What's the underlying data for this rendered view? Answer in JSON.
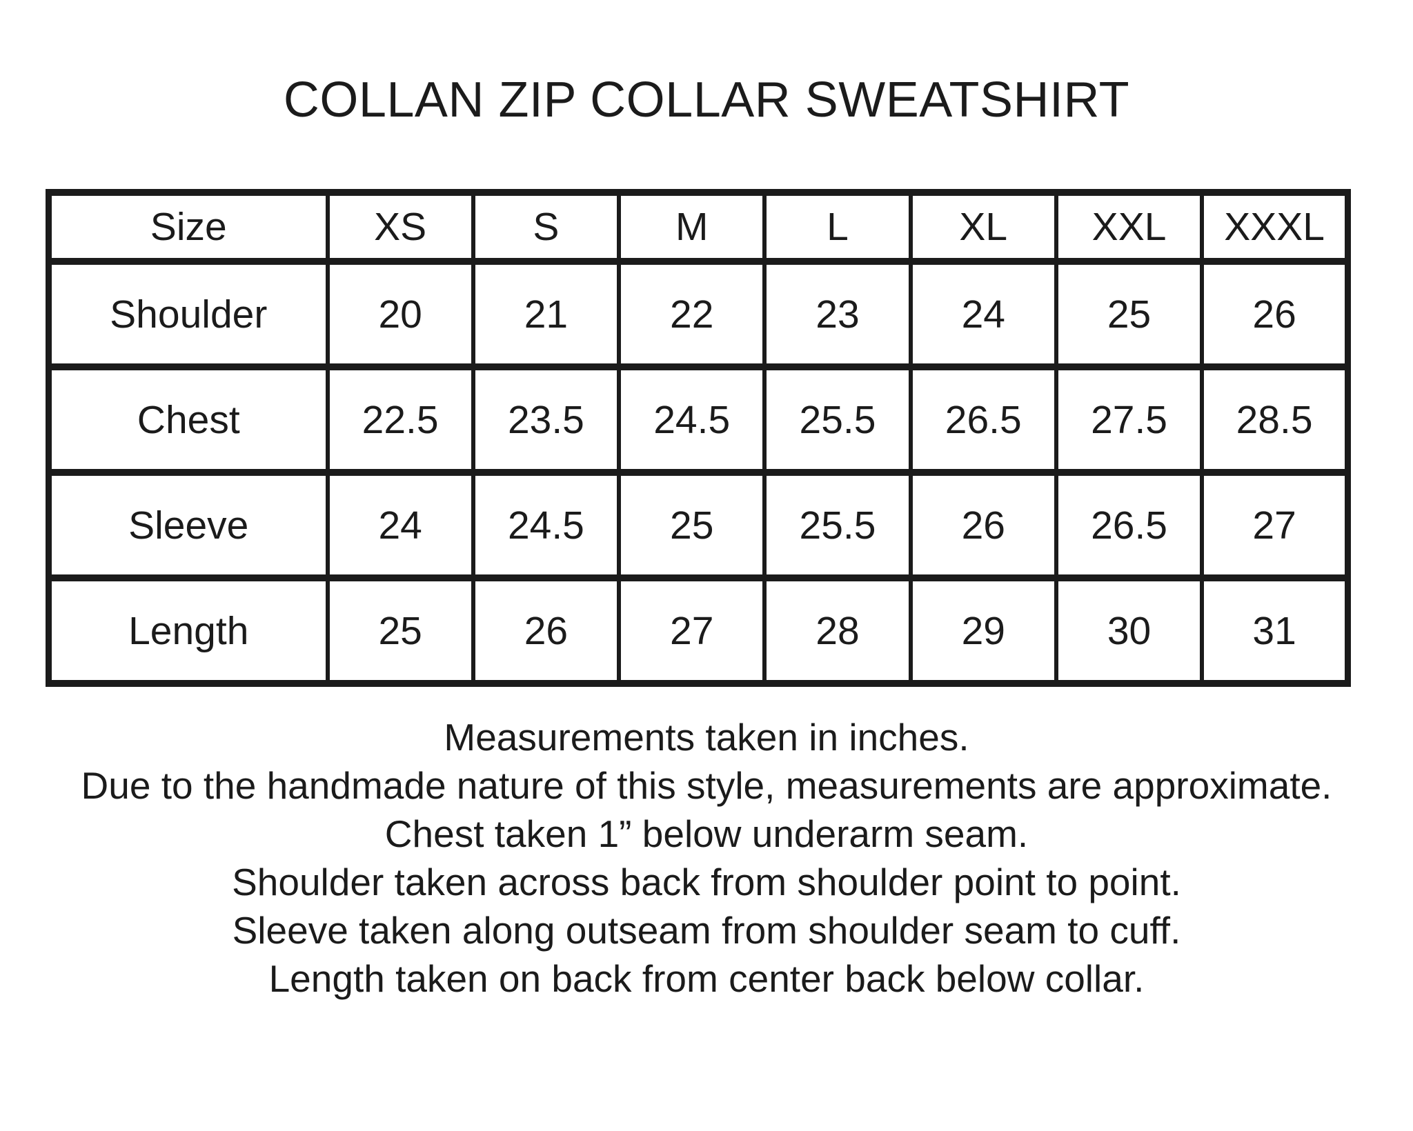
{
  "colors": {
    "background": "#ffffff",
    "text": "#1b1b1b",
    "border": "#1b1b1b"
  },
  "title": "COLLAN ZIP COLLAR SWEATSHIRT",
  "size_table": {
    "header": [
      "Size",
      "XS",
      "S",
      "M",
      "L",
      "XL",
      "XXL",
      "XXXL"
    ],
    "rows": [
      {
        "label": "Shoulder",
        "values": [
          "20",
          "21",
          "22",
          "23",
          "24",
          "25",
          "26"
        ]
      },
      {
        "label": "Chest",
        "values": [
          "22.5",
          "23.5",
          "24.5",
          "25.5",
          "26.5",
          "27.5",
          "28.5"
        ]
      },
      {
        "label": "Sleeve",
        "values": [
          "24",
          "24.5",
          "25",
          "25.5",
          "26",
          "26.5",
          "27"
        ]
      },
      {
        "label": "Length",
        "values": [
          "25",
          "26",
          "27",
          "28",
          "29",
          "30",
          "31"
        ]
      }
    ]
  },
  "notes": [
    "Measurements taken in inches.",
    "Due to the handmade nature of this style, measurements are approximate.",
    "Chest taken 1” below underarm seam.",
    "Shoulder taken across back from shoulder point to point.",
    "Sleeve taken along outseam from shoulder seam to cuff.",
    "Length taken on back from center back below collar."
  ],
  "chart_data": {
    "type": "table",
    "title": "COLLAN ZIP COLLAR SWEATSHIRT",
    "units": "inches",
    "columns": [
      "Size",
      "XS",
      "S",
      "M",
      "L",
      "XL",
      "XXL",
      "XXXL"
    ],
    "rows": [
      [
        "Shoulder",
        20,
        21,
        22,
        23,
        24,
        25,
        26
      ],
      [
        "Chest",
        22.5,
        23.5,
        24.5,
        25.5,
        26.5,
        27.5,
        28.5
      ],
      [
        "Sleeve",
        24,
        24.5,
        25,
        25.5,
        26,
        26.5,
        27
      ],
      [
        "Length",
        25,
        26,
        27,
        28,
        29,
        30,
        31
      ]
    ],
    "notes": [
      "Measurements taken in inches.",
      "Due to the handmade nature of this style, measurements are approximate.",
      "Chest taken 1” below underarm seam.",
      "Shoulder taken across back from shoulder point to point.",
      "Sleeve taken along outseam from shoulder seam to cuff.",
      "Length taken on back from center back below collar."
    ]
  }
}
